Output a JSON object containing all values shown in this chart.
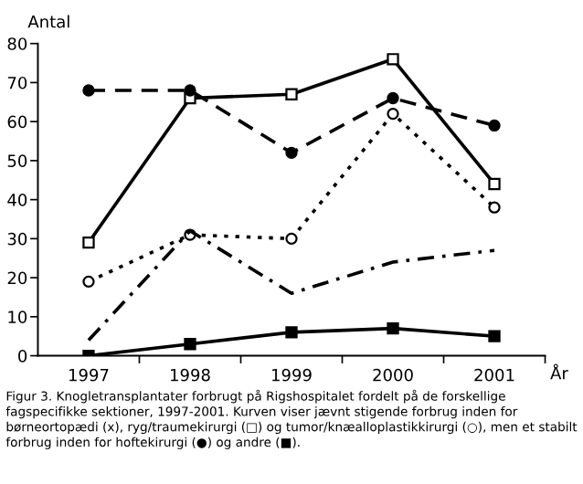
{
  "chart_data": {
    "type": "line",
    "ylabel": "Antal",
    "xlabel": "År",
    "categories": [
      "1997",
      "1998",
      "1999",
      "2000",
      "2001"
    ],
    "ylim": [
      0,
      80
    ],
    "yticks": [
      0,
      10,
      20,
      30,
      40,
      50,
      60,
      70,
      80
    ],
    "grid": false,
    "legend": false,
    "series": [
      {
        "color": "#000000",
        "values": [
          29,
          66,
          67,
          76,
          44
        ],
        "marker": "square",
        "line_style": "solid"
      },
      {
        "color": "#000000",
        "values": [
          68,
          68,
          52,
          66,
          59
        ],
        "marker": "circle",
        "line_style": "dashed"
      },
      {
        "color": "#000000",
        "values": [
          19,
          31,
          30,
          62,
          38
        ],
        "marker": "circle",
        "line_style": "dotted"
      },
      {
        "color": "#000000",
        "values": [
          4,
          32,
          16,
          24,
          27
        ],
        "marker": "none",
        "line_style": "dashdot"
      },
      {
        "color": "#000000",
        "values": [
          0,
          3,
          6,
          7,
          5
        ],
        "marker": "square",
        "line_style": "solid"
      }
    ],
    "annotations": [
      "Figur 3. Knogletransplantater forbrugt på Rigshospitalet fordelt på de forskellige fagspecifikke sektioner, 1997-2001. Kurven viser jævnt stigende forbrug inden for børneortopædi (x), ryg/traumekirurgi (□) og tumor/knæalloplastikkirurgi (○), men et stabilt forbrug inden for hoftekirurgi (●) og andre (■)."
    ]
  }
}
